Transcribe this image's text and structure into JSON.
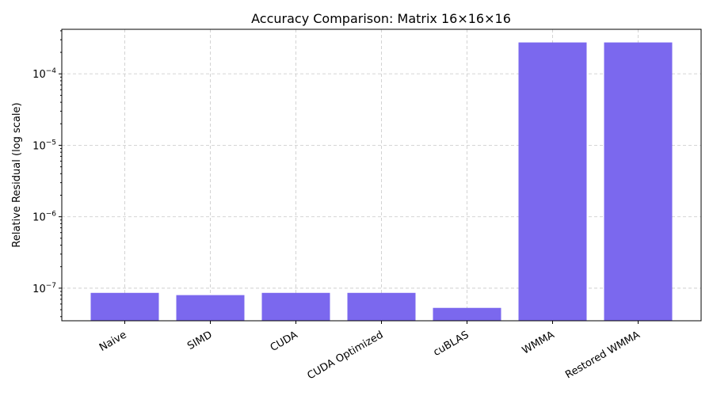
{
  "chart_data": {
    "type": "bar",
    "title": "Accuracy Comparison: Matrix 16×16×16",
    "xlabel": "",
    "ylabel": "Relative Residual (log scale)",
    "yscale": "log",
    "ylim": [
      3.5e-08,
      0.00042
    ],
    "grid": true,
    "bar_color": "#7b68ee",
    "categories": [
      "Naive",
      "SIMD",
      "CUDA",
      "CUDA Optimized",
      "cuBLAS",
      "WMMA",
      "Restored WMMA"
    ],
    "values": [
      8.6e-08,
      8e-08,
      8.6e-08,
      8.6e-08,
      5.3e-08,
      0.000275,
      0.000275
    ],
    "yticks": [
      {
        "value": 1e-07,
        "base": "10",
        "exp": "−7"
      },
      {
        "value": 1e-06,
        "base": "10",
        "exp": "−6"
      },
      {
        "value": 1e-05,
        "base": "10",
        "exp": "−5"
      },
      {
        "value": 0.0001,
        "base": "10",
        "exp": "−4"
      }
    ]
  }
}
